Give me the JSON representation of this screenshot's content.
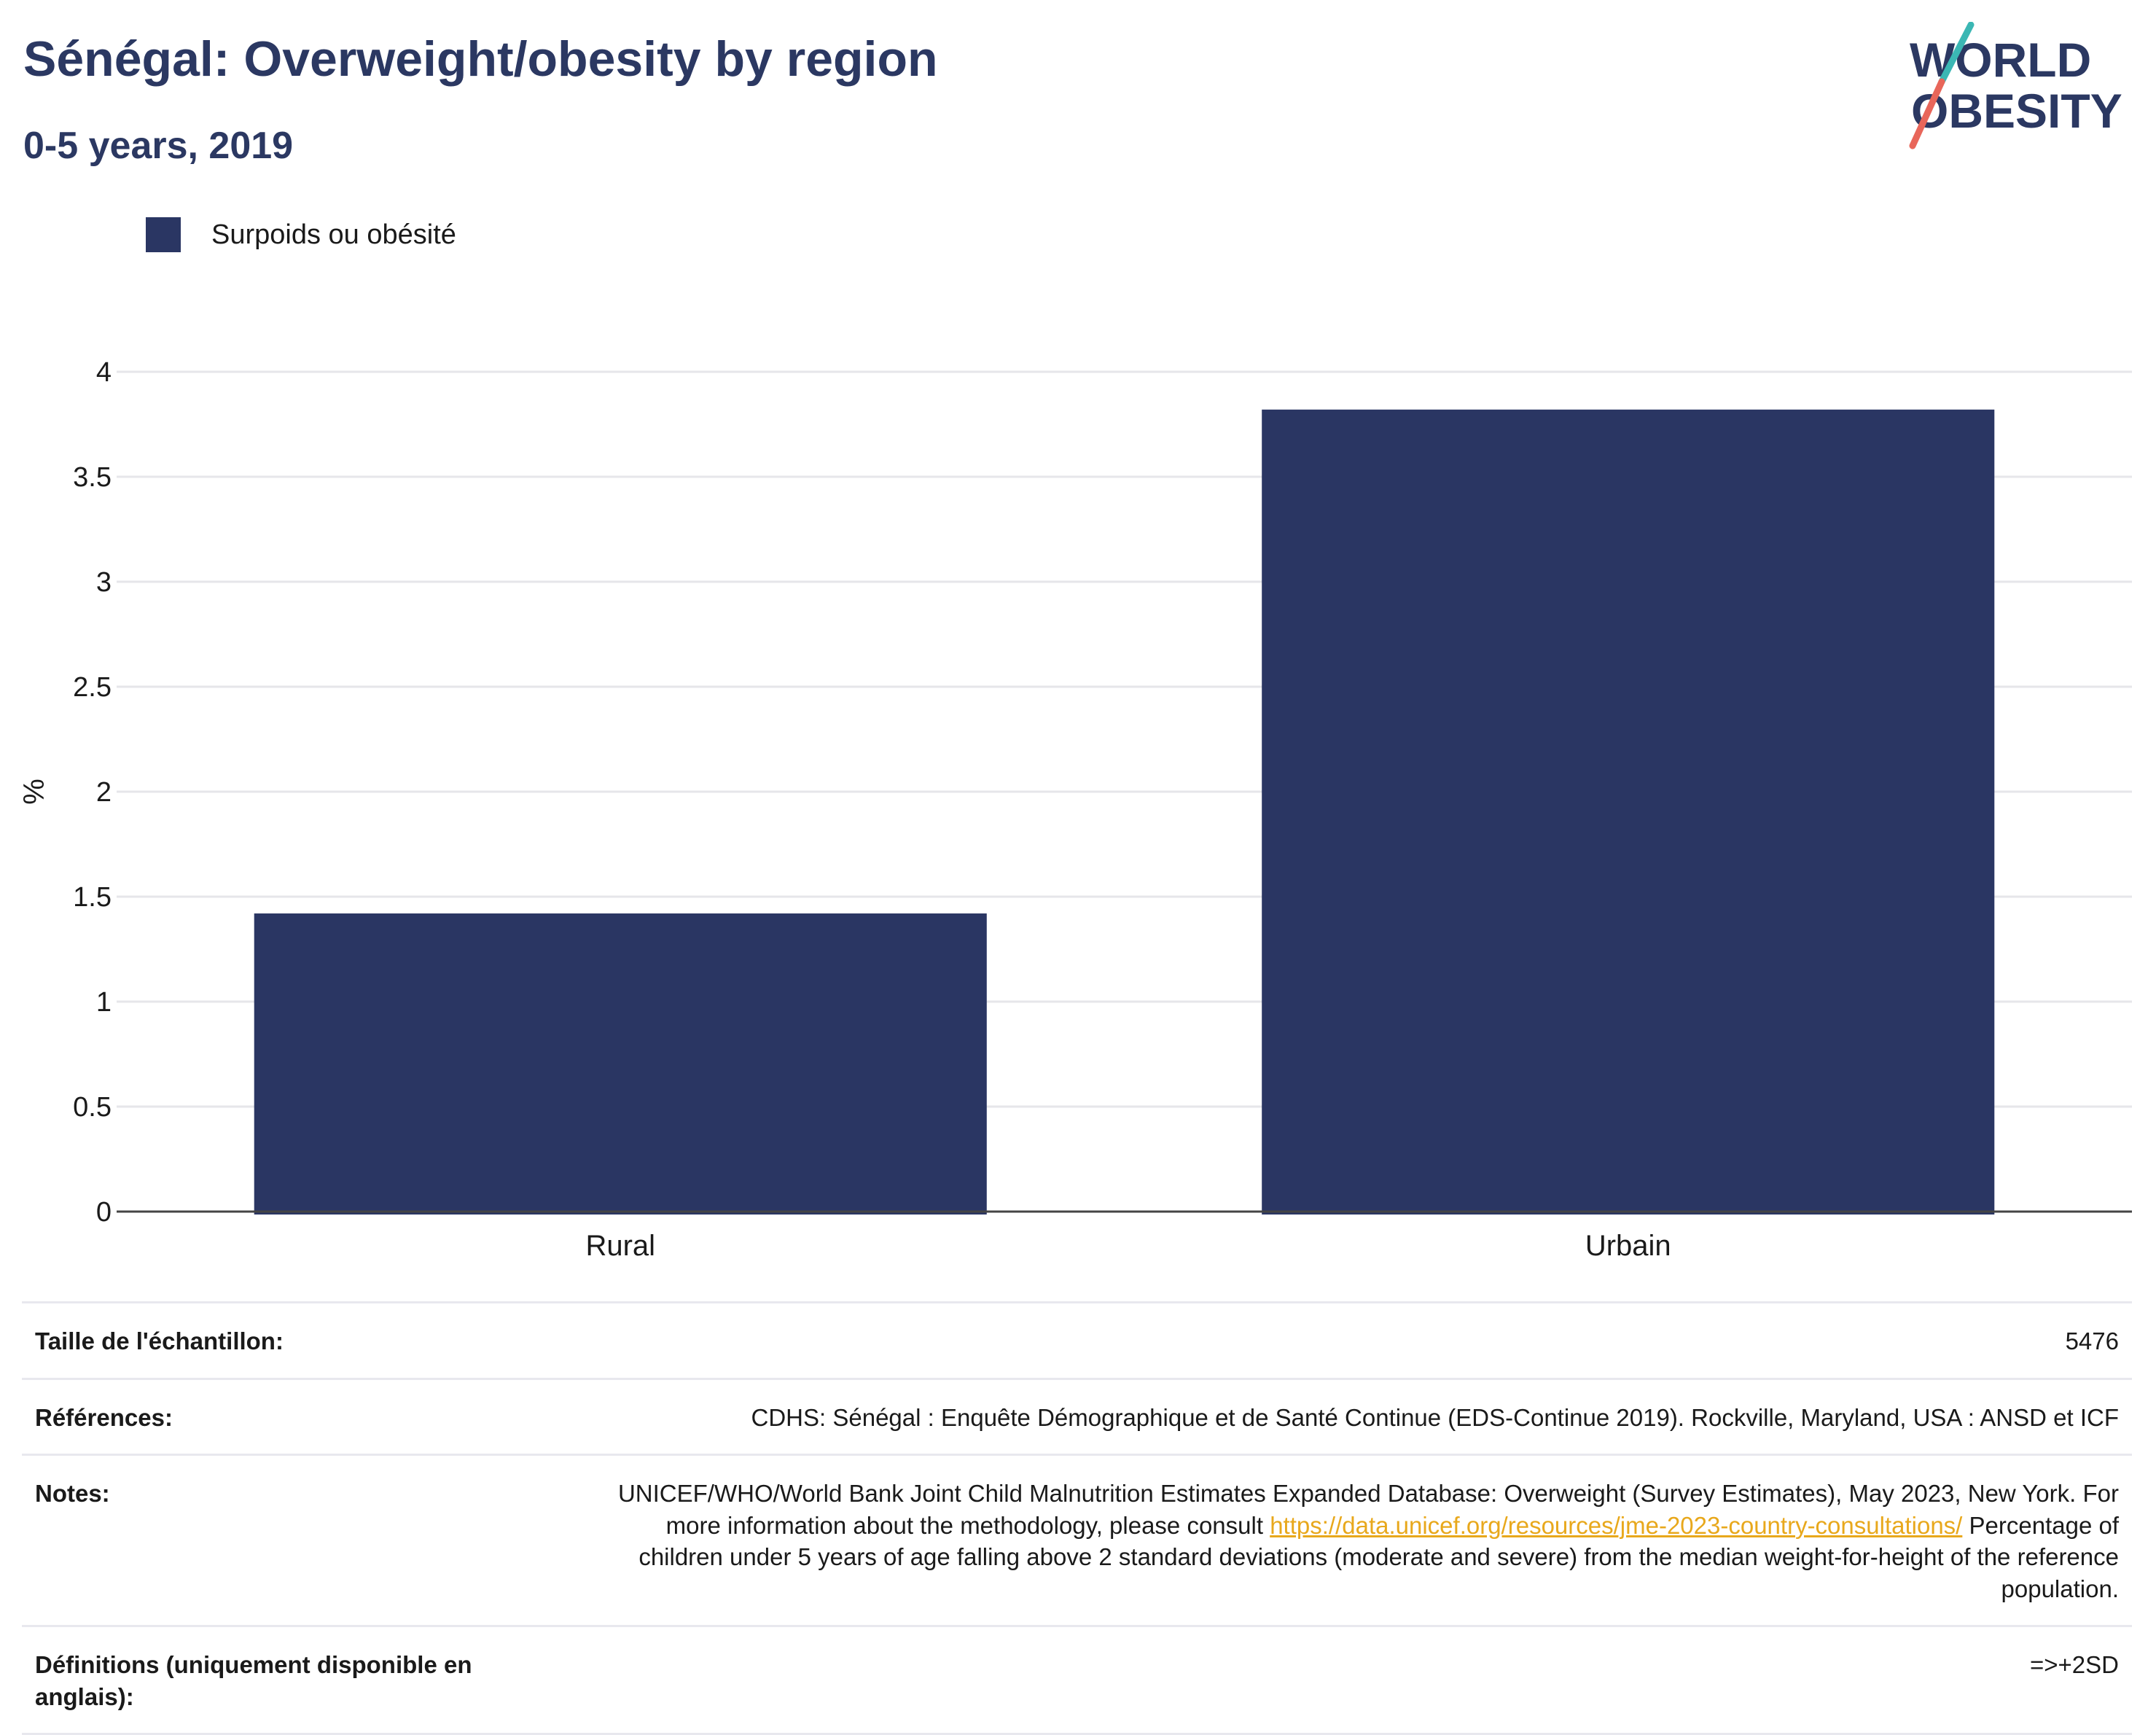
{
  "header": {
    "title": "Sénégal: Overweight/obesity by region",
    "subtitle": "0-5 years, 2019"
  },
  "logo": {
    "line1": "WORLD",
    "line2": "OBESITY"
  },
  "legend": {
    "label": "Surpoids ou obésité",
    "color": "#2a3663"
  },
  "chart_data": {
    "type": "bar",
    "categories": [
      "Rural",
      "Urbain"
    ],
    "series": [
      {
        "name": "Surpoids ou obésité",
        "values": [
          1.42,
          3.82
        ]
      }
    ],
    "ylabel": "%",
    "xlabel": "",
    "ylim": [
      0,
      4
    ],
    "yticks": [
      "0",
      "0.5",
      "1",
      "1.5",
      "2",
      "2.5",
      "3",
      "3.5",
      "4"
    ],
    "grid": true,
    "legend_position": "top-left",
    "bar_color": "#2a3663"
  },
  "info_table": {
    "sample_label": "Taille de l'échantillon:",
    "sample_value": "5476",
    "references_label": "Références:",
    "references_value": "CDHS: Sénégal : Enquête Démographique et de Santé Continue (EDS-Continue 2019). Rockville, Maryland, USA : ANSD et ICF",
    "notes_label": "Notes:",
    "notes_text_1": "UNICEF/WHO/World Bank Joint Child Malnutrition Estimates Expanded Database: Overweight (Survey Estimates), May 2023, New York. For more information about the methodology, please consult ",
    "notes_link": "https://data.unicef.org/resources/jme-2023-country-consultations/",
    "notes_text_2": " Percentage of children under 5 years of age falling above 2 standard deviations (moderate and severe) from the median weight-for-height of the reference population.",
    "definitions_label": "Définitions (uniquement disponible en anglais):",
    "definitions_value": "=>+2SD"
  }
}
